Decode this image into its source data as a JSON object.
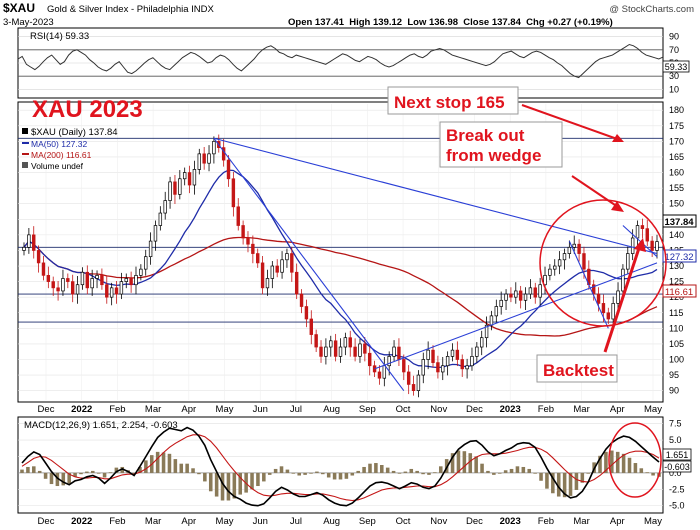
{
  "header": {
    "symbol": "$XAU",
    "name": "Gold & Silver Index - Philadelphia INDX",
    "date": "3-May-2023",
    "ohlc": "Open 137.41  High 139.12  Low 136.98  Close 137.84  Chg +0.27 (+0.19%)",
    "watermark": "@ StockCharts.com"
  },
  "annotations": {
    "title": "XAU 2023",
    "next_stop": "Next stop 165",
    "break_out_1": "Break out",
    "break_out_2": "from wedge",
    "backtest": "Backtest"
  },
  "chart_data": [
    {
      "type": "line",
      "panel": "rsi",
      "title": "RSI(14) 59.33",
      "last_value_label": "59.33",
      "ylim": [
        0,
        100
      ],
      "y_ticks": [
        90,
        70,
        50,
        30,
        10
      ],
      "reference_lines": [
        70,
        30
      ],
      "values": [
        56,
        60,
        48,
        44,
        40,
        45,
        52,
        58,
        62,
        55,
        48,
        52,
        62,
        68,
        70,
        66,
        62,
        55,
        50,
        44,
        40,
        38,
        42,
        48,
        52,
        44,
        36,
        34,
        38,
        44,
        50,
        55,
        58,
        52,
        46,
        42,
        40,
        46,
        52,
        58,
        62,
        66,
        64,
        60,
        55,
        50,
        52,
        58,
        62,
        60,
        55,
        48,
        42,
        38,
        44,
        50,
        56,
        64,
        70,
        74,
        76,
        72,
        66,
        64,
        60,
        58,
        62,
        60,
        58,
        56,
        54,
        52,
        50,
        48,
        52,
        56,
        60,
        64,
        62,
        58,
        54,
        52,
        56,
        60,
        58,
        55,
        50,
        46,
        44,
        46,
        50,
        54,
        58,
        62,
        64,
        60,
        58,
        62,
        68,
        70,
        72,
        70,
        66,
        62,
        60,
        58,
        56,
        54,
        52,
        50,
        48,
        46,
        48,
        52,
        58,
        64,
        66,
        68,
        64,
        60,
        58,
        62,
        66,
        68,
        66,
        62,
        58,
        55,
        50,
        46,
        40,
        34,
        30,
        28,
        34,
        40,
        46,
        52,
        56,
        58,
        60,
        62,
        66,
        70,
        74,
        78,
        76,
        72,
        66,
        62,
        60,
        58,
        56,
        59
      ]
    },
    {
      "type": "candlestick",
      "panel": "price",
      "title": "$XAU (Daily) 137.84",
      "legend": [
        "$XAU (Daily) 137.84",
        "MA(50) 127.32",
        "MA(200) 116.61",
        "Volume undef"
      ],
      "last_value_labels": {
        "close": "137.84",
        "ma50": "127.32",
        "ma200": "116.61"
      },
      "ylim": [
        87,
        182
      ],
      "y_ticks": [
        180,
        175,
        170,
        165,
        160,
        155,
        150,
        145,
        140,
        135,
        130,
        125,
        120,
        115,
        110,
        105,
        100,
        95,
        90
      ],
      "x_labels": [
        "Dec",
        "2022",
        "Feb",
        "Mar",
        "Apr",
        "May",
        "Jun",
        "Jul",
        "Aug",
        "Sep",
        "Oct",
        "Nov",
        "Dec",
        "2023",
        "Feb",
        "Mar",
        "Apr",
        "May"
      ],
      "close": [
        136,
        140,
        135,
        131,
        127,
        125,
        123,
        122,
        126,
        125,
        121,
        124,
        128,
        123,
        126,
        127,
        124,
        120,
        123,
        121,
        125,
        126,
        124,
        127,
        129,
        133,
        138,
        143,
        147,
        151,
        157,
        153,
        158,
        160,
        156,
        161,
        166,
        163,
        166,
        170,
        168,
        164,
        158,
        149,
        143,
        139,
        137,
        134,
        131,
        123,
        126,
        130,
        128,
        132,
        134,
        128,
        121,
        117,
        113,
        108,
        104,
        101,
        104,
        106,
        101,
        104,
        107,
        104,
        101,
        105,
        102,
        98,
        96,
        94,
        98,
        101,
        104,
        100,
        96,
        92,
        90,
        95,
        100,
        103,
        99,
        96,
        98,
        101,
        103,
        100,
        97,
        98,
        101,
        104,
        107,
        111,
        114,
        117,
        119,
        121,
        120,
        122,
        119,
        121,
        123,
        120,
        124,
        127,
        129,
        130,
        132,
        134,
        136,
        137,
        134,
        129,
        124,
        121,
        118,
        115,
        113,
        118,
        122,
        129,
        134,
        139,
        143,
        142,
        138,
        135,
        137.84
      ]
    },
    {
      "type": "line",
      "panel": "macd",
      "title": "MACD(12,26,9) 1.651, 2.254, -0.603",
      "series": [
        {
          "name": "MACD"
        },
        {
          "name": "Signal"
        },
        {
          "name": "Histogram"
        }
      ],
      "last_value_labels": {
        "macd": "1.651",
        "hist": "-0.603"
      },
      "ylim": [
        -5.8,
        8.2
      ],
      "y_ticks": [
        7.5,
        5.0,
        2.5,
        0.0,
        -2.5,
        -5.0
      ],
      "macd": [
        1.5,
        2.5,
        3.2,
        2.8,
        1.5,
        0.2,
        -0.8,
        -1.4,
        -1.8,
        -1.2,
        -1.0,
        -0.6,
        -0.4,
        -0.8,
        -1.6,
        -0.8,
        0.2,
        0.6,
        0.2,
        -0.4,
        1.0,
        2.5,
        4.0,
        5.4,
        6.2,
        6.8,
        6.6,
        6.4,
        6.9,
        6.5,
        5.6,
        4.2,
        2.0,
        0.2,
        -1.6,
        -2.8,
        -3.6,
        -4.0,
        -4.6,
        -4.9,
        -5.0,
        -4.7,
        -3.8,
        -2.8,
        -2.2,
        -2.6,
        -3.2,
        -3.6,
        -3.6,
        -3.3,
        -3.0,
        -3.4,
        -4.1,
        -4.6,
        -4.9,
        -5.0,
        -4.6,
        -3.8,
        -2.9,
        -2.0,
        -1.5,
        -1.4,
        -1.6,
        -2.0,
        -2.4,
        -2.0,
        -1.5,
        -1.7,
        -2.2,
        -2.4,
        -2.0,
        -0.8,
        0.8,
        2.4,
        3.6,
        4.3,
        4.8,
        4.9,
        4.2,
        3.2,
        2.6,
        2.9,
        3.4,
        3.8,
        4.4,
        4.6,
        4.5,
        3.9,
        2.4,
        0.7,
        -0.8,
        -2.2,
        -3.2,
        -3.8,
        -3.6,
        -2.8,
        -1.4,
        0.6,
        2.2,
        3.6,
        4.6,
        5.2,
        5.6,
        5.4,
        4.8,
        4.0,
        3.2,
        2.4,
        1.651
      ],
      "signal": [
        1.0,
        1.6,
        2.2,
        2.5,
        2.4,
        1.9,
        1.2,
        0.5,
        -0.2,
        -0.6,
        -0.8,
        -0.8,
        -0.7,
        -0.7,
        -0.9,
        -0.9,
        -0.6,
        -0.3,
        -0.2,
        -0.2,
        0.1,
        0.6,
        1.3,
        2.2,
        3.1,
        3.9,
        4.5,
        5.0,
        5.5,
        5.8,
        5.8,
        5.5,
        4.8,
        3.8,
        2.6,
        1.4,
        0.3,
        -0.7,
        -1.6,
        -2.4,
        -3.0,
        -3.4,
        -3.5,
        -3.4,
        -3.2,
        -3.1,
        -3.1,
        -3.2,
        -3.3,
        -3.3,
        -3.2,
        -3.2,
        -3.4,
        -3.6,
        -3.9,
        -4.1,
        -4.2,
        -4.1,
        -3.8,
        -3.4,
        -3.0,
        -2.6,
        -2.4,
        -2.3,
        -2.3,
        -2.2,
        -2.1,
        -2.0,
        -2.0,
        -2.1,
        -2.1,
        -1.8,
        -1.3,
        -0.6,
        0.2,
        1.0,
        1.8,
        2.4,
        2.8,
        2.9,
        2.9,
        2.9,
        3.0,
        3.2,
        3.4,
        3.7,
        3.9,
        3.9,
        3.6,
        3.1,
        2.3,
        1.4,
        0.5,
        -0.3,
        -1.0,
        -1.3,
        -1.4,
        -1.0,
        -0.4,
        0.4,
        1.2,
        2.0,
        2.7,
        3.1,
        3.3,
        3.3,
        3.1,
        2.8,
        2.254
      ]
    }
  ]
}
